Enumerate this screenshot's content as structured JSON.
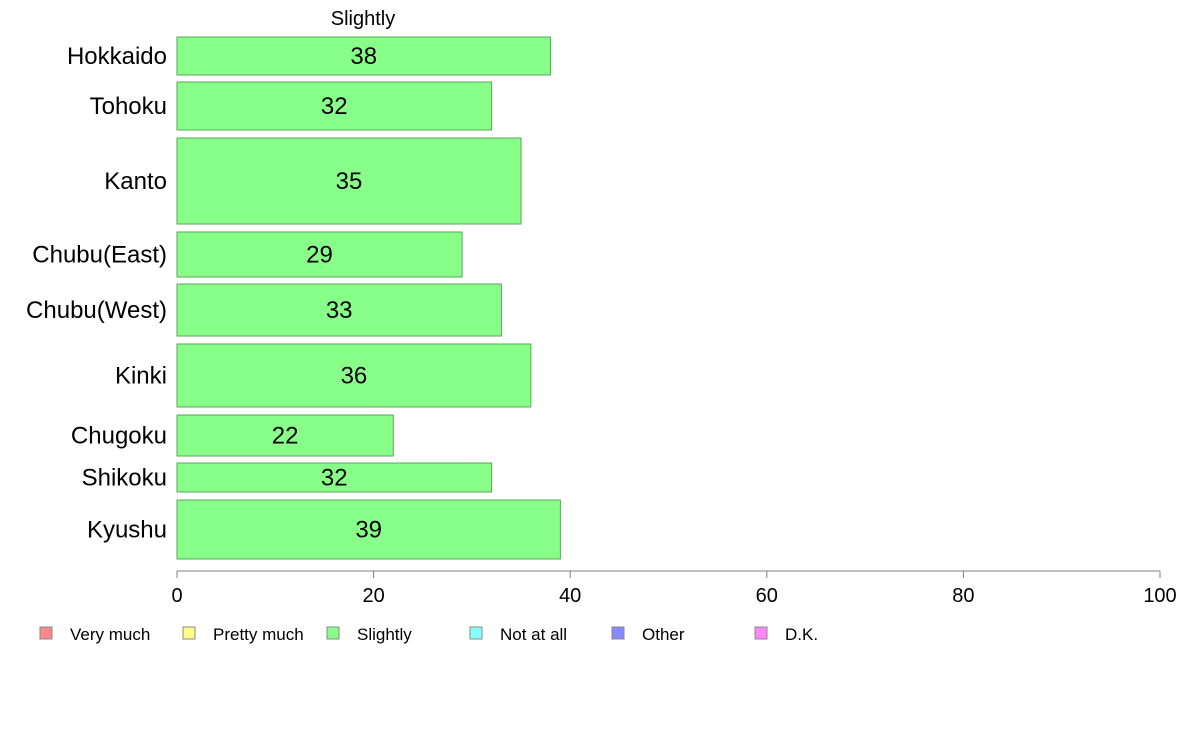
{
  "chart_data": {
    "type": "bar",
    "orientation": "horizontal",
    "title": "Slightly",
    "categories": [
      "Hokkaido",
      "Tohoku",
      "Kanto",
      "Chubu(East)",
      "Chubu(West)",
      "Kinki",
      "Chugoku",
      "Shikoku",
      "Kyushu"
    ],
    "values": [
      38,
      32,
      35,
      29,
      33,
      36,
      22,
      32,
      39
    ],
    "data_labels": [
      "38",
      "32",
      "35",
      "29",
      "33",
      "36",
      "22",
      "32",
      "39"
    ],
    "xlim": [
      0,
      100
    ],
    "xticks": [
      0,
      20,
      40,
      60,
      80,
      100
    ],
    "xlabel": "",
    "ylabel": "",
    "grid": false,
    "legend_position": "bottom",
    "bar_color": "#88ff88",
    "legend": [
      {
        "name": "Very much",
        "color": "#ff8888"
      },
      {
        "name": "Pretty much",
        "color": "#ffff88"
      },
      {
        "name": "Slightly",
        "color": "#88ff88"
      },
      {
        "name": "Not at all",
        "color": "#88ffff"
      },
      {
        "name": "Other",
        "color": "#8888ff"
      },
      {
        "name": "D.K.",
        "color": "#ff88ff"
      }
    ]
  }
}
